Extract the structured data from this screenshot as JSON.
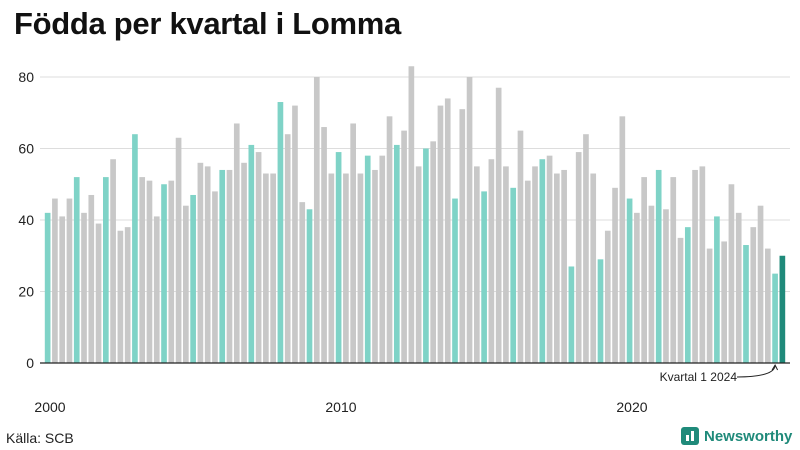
{
  "title": "Födda per kvartal i Lomma",
  "source": "Källa: SCB",
  "brand": "Newsworthy",
  "colors": {
    "q1": "#7fd3c7",
    "other": "#c8c8c8",
    "latest": "#1f8a7a",
    "grid": "#dddddd",
    "axis": "#222222"
  },
  "chart_data": {
    "type": "bar",
    "title": "Födda per kvartal i Lomma",
    "xlabel": "",
    "ylabel": "",
    "ylim": [
      0,
      85
    ],
    "yticks": [
      0,
      20,
      40,
      60,
      80
    ],
    "xticks": [
      {
        "label": "2000",
        "index": 0
      },
      {
        "label": "2010",
        "index": 40
      },
      {
        "label": "2020",
        "index": 80
      }
    ],
    "start_year": 2000,
    "values": [
      42,
      46,
      41,
      46,
      52,
      42,
      47,
      39,
      52,
      57,
      37,
      38,
      64,
      52,
      51,
      41,
      50,
      51,
      63,
      44,
      47,
      56,
      55,
      48,
      54,
      54,
      67,
      56,
      61,
      59,
      53,
      53,
      73,
      64,
      72,
      45,
      43,
      80,
      66,
      53,
      59,
      53,
      67,
      53,
      58,
      54,
      58,
      69,
      61,
      65,
      83,
      55,
      60,
      62,
      72,
      74,
      46,
      71,
      80,
      55,
      48,
      57,
      77,
      55,
      49,
      65,
      51,
      55,
      57,
      58,
      53,
      54,
      27,
      59,
      64,
      53,
      29,
      37,
      49,
      69,
      46,
      42,
      52,
      44,
      54,
      43,
      52,
      35,
      38,
      54,
      55,
      32,
      41,
      34,
      50,
      42,
      33,
      38,
      44,
      32,
      25,
      30
    ],
    "annotation": "Kvartal 1 2024"
  }
}
